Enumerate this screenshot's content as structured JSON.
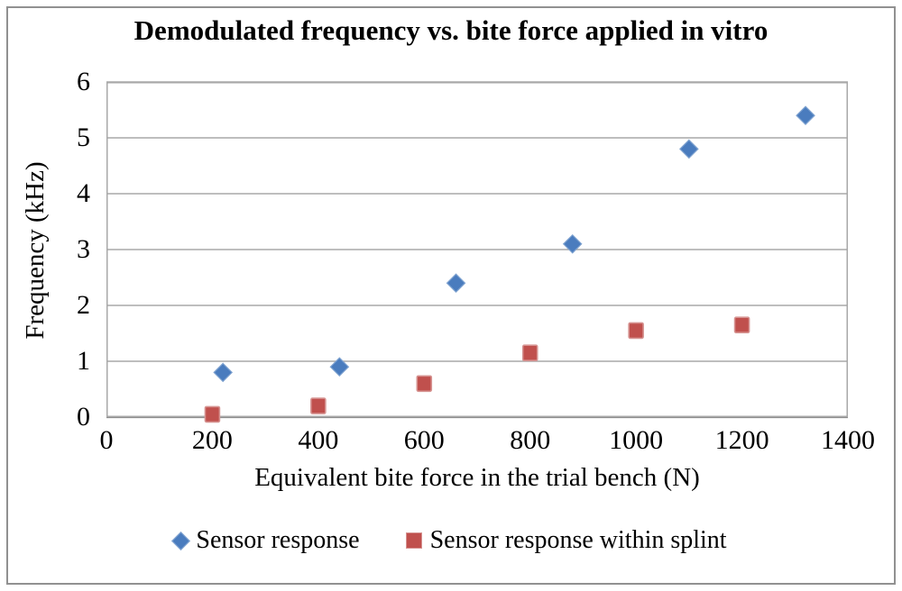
{
  "window": {
    "background_color": "#FFFFFF",
    "frame_border_color": "#919191"
  },
  "chart_data": {
    "type": "scatter",
    "title": "Demodulated frequency vs. bite force applied in vitro",
    "xlabel": "Equivalent bite force in the trial bench (N)",
    "ylabel": "Frequency (kHz)",
    "xlim": [
      0,
      1400
    ],
    "ylim": [
      0,
      6
    ],
    "x_ticks": [
      0,
      200,
      400,
      600,
      800,
      1000,
      1200,
      1400
    ],
    "y_ticks": [
      0,
      1,
      2,
      3,
      4,
      5,
      6
    ],
    "grid": "horizontal-only",
    "gridline_color": "#A8A8A8",
    "axis_line_color": "#8F8F8F",
    "trendline_color": "#262626",
    "legend_position": "bottom",
    "series": [
      {
        "name": "Sensor response",
        "marker": "diamond",
        "color": "#4A7CBE",
        "marker_edge_color": "#7EA2D0",
        "trendline": "cubic",
        "points": [
          [
            220,
            0.8
          ],
          [
            440,
            0.9
          ],
          [
            660,
            2.4
          ],
          [
            880,
            3.1
          ],
          [
            1100,
            4.8
          ],
          [
            1320,
            5.4
          ]
        ]
      },
      {
        "name": "Sensor response within splint",
        "marker": "square",
        "color": "#C0504D",
        "marker_edge_color": "#D69391",
        "trendline": "cubic",
        "points": [
          [
            200,
            0.05
          ],
          [
            400,
            0.2
          ],
          [
            600,
            0.6
          ],
          [
            800,
            1.15
          ],
          [
            1000,
            1.55
          ],
          [
            1200,
            1.65
          ]
        ]
      }
    ]
  }
}
